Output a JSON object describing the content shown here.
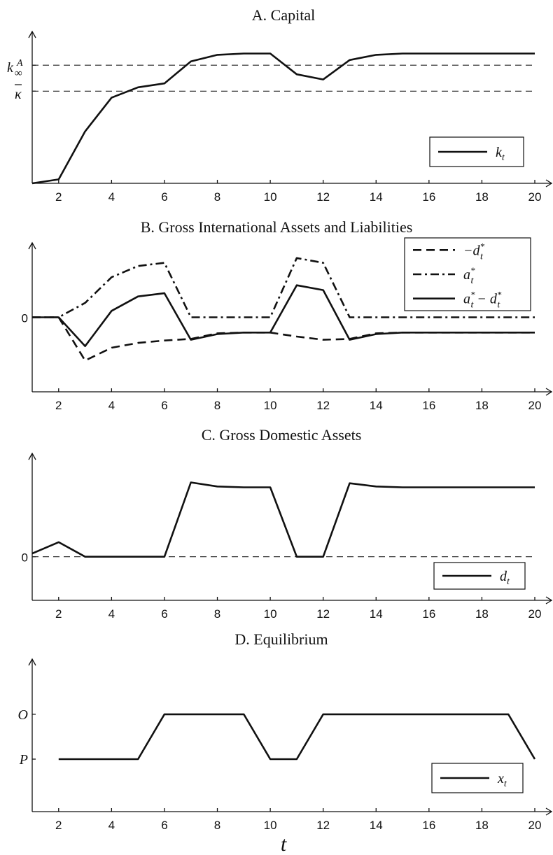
{
  "xlabel": "t",
  "chart_data": [
    {
      "type": "line",
      "title": "A. Capital",
      "x_tick_labels": [
        "2",
        "4",
        "6",
        "8",
        "10",
        "12",
        "14",
        "16",
        "18",
        "20"
      ],
      "y_ref_labels": [
        "κ",
        "k∞A"
      ],
      "series": [
        {
          "name": "k_t",
          "legend": "k",
          "legend_sub": "t",
          "style": "solid",
          "x": [
            1,
            2,
            3,
            4,
            5,
            6,
            7,
            8,
            9,
            10,
            11,
            12,
            13,
            14,
            15,
            16,
            17,
            18,
            19,
            20
          ],
          "y": [
            0,
            0.03,
            0.4,
            0.66,
            0.74,
            0.77,
            0.94,
            0.99,
            1.0,
            1.0,
            0.84,
            0.8,
            0.95,
            0.99,
            1.0,
            1.0,
            1.0,
            1.0,
            1.0,
            1.0
          ]
        }
      ],
      "reference_lines": [
        0.71,
        0.91
      ],
      "xlim": [
        1,
        20
      ],
      "ylim": [
        0,
        1.17
      ],
      "legend_position": "lower-right"
    },
    {
      "type": "line",
      "title": "B. Gross International Assets and Liabilities",
      "x_tick_labels": [
        "2",
        "4",
        "6",
        "8",
        "10",
        "12",
        "14",
        "16",
        "18",
        "20"
      ],
      "y_tick_labels": [
        "0"
      ],
      "series": [
        {
          "name": "−d*_t",
          "legend": "−d",
          "legend_sup": "*",
          "legend_sub": "t",
          "style": "dashed",
          "x": [
            1,
            2,
            3,
            4,
            5,
            6,
            7,
            8,
            9,
            10,
            11,
            12,
            13,
            14,
            15,
            16,
            17,
            18,
            19,
            20
          ],
          "y": [
            0,
            0,
            -0.54,
            -0.38,
            -0.32,
            -0.29,
            -0.27,
            -0.2,
            -0.19,
            -0.19,
            -0.24,
            -0.28,
            -0.27,
            -0.2,
            -0.19,
            -0.19,
            -0.19,
            -0.19,
            -0.19,
            -0.19
          ]
        },
        {
          "name": "a*_t",
          "legend": "a",
          "legend_sup": "*",
          "legend_sub": "t",
          "style": "dashdot",
          "x": [
            1,
            2,
            3,
            4,
            5,
            6,
            7,
            8,
            9,
            10,
            11,
            12,
            13,
            14,
            15,
            16,
            17,
            18,
            19,
            20
          ],
          "y": [
            0,
            0,
            0.18,
            0.5,
            0.64,
            0.68,
            0,
            0,
            0,
            0,
            0.74,
            0.68,
            0,
            0,
            0,
            0,
            0,
            0,
            0,
            0
          ]
        },
        {
          "name": "a*_t − d*_t",
          "legend": "a",
          "legend_sup": "*",
          "legend_sub": "t",
          "legend_rest": " − d",
          "legend_sup2": "*",
          "legend_sub2": "t",
          "style": "solid",
          "x": [
            1,
            2,
            3,
            4,
            5,
            6,
            7,
            8,
            9,
            10,
            11,
            12,
            13,
            14,
            15,
            16,
            17,
            18,
            19,
            20
          ],
          "y": [
            0,
            0,
            -0.36,
            0.08,
            0.26,
            0.3,
            -0.28,
            -0.21,
            -0.19,
            -0.19,
            0.4,
            0.34,
            -0.28,
            -0.21,
            -0.19,
            -0.19,
            -0.19,
            -0.19,
            -0.19,
            -0.19
          ]
        }
      ],
      "xlim": [
        1,
        20
      ],
      "ylim": [
        -0.93,
        0.93
      ],
      "legend_position": "top-right"
    },
    {
      "type": "line",
      "title": "C. Gross Domestic Assets",
      "x_tick_labels": [
        "2",
        "4",
        "6",
        "8",
        "10",
        "12",
        "14",
        "16",
        "18",
        "20"
      ],
      "y_tick_labels": [
        "0"
      ],
      "series": [
        {
          "name": "d_t",
          "legend": "d",
          "legend_sub": "t",
          "style": "solid",
          "x": [
            1,
            2,
            3,
            4,
            5,
            6,
            7,
            8,
            9,
            10,
            11,
            12,
            13,
            14,
            15,
            16,
            17,
            18,
            19,
            20
          ],
          "y": [
            0.04,
            0.18,
            0,
            0,
            0,
            0,
            0.92,
            0.87,
            0.86,
            0.86,
            0,
            0,
            0.91,
            0.87,
            0.86,
            0.86,
            0.86,
            0.86,
            0.86,
            0.86
          ]
        }
      ],
      "reference_lines": [
        0
      ],
      "xlim": [
        1,
        20
      ],
      "ylim": [
        -0.54,
        1.28
      ],
      "legend_position": "lower-right"
    },
    {
      "type": "line",
      "title": "D. Equilibrium",
      "x_tick_labels": [
        "2",
        "4",
        "6",
        "8",
        "10",
        "12",
        "14",
        "16",
        "18",
        "20"
      ],
      "y_tick_labels": [
        "P",
        "O"
      ],
      "series": [
        {
          "name": "x_t",
          "legend": "x",
          "legend_sub": "t",
          "style": "solid",
          "x": [
            2,
            3,
            4,
            5,
            6,
            7,
            8,
            9,
            10,
            11,
            12,
            13,
            14,
            15,
            16,
            17,
            18,
            19,
            20
          ],
          "y": [
            0,
            0,
            0,
            0,
            1,
            1,
            1,
            1,
            0,
            0,
            1,
            1,
            1,
            1,
            1,
            1,
            1,
            1,
            0
          ]
        }
      ],
      "xlim": [
        1,
        20
      ],
      "ylim": [
        -1.17,
        2.23
      ],
      "legend_position": "lower-right"
    }
  ]
}
